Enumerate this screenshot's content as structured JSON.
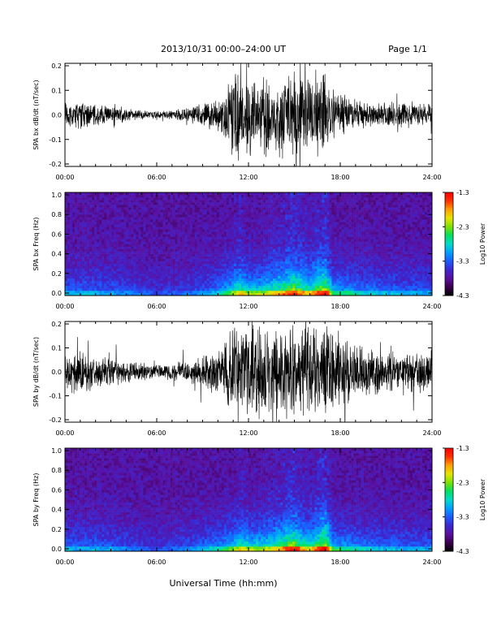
{
  "header": {
    "title": "2013/10/31   00:00–24:00 UT",
    "page": "Page 1/1"
  },
  "footer": {
    "xlabel": "Universal Time (hh:mm)"
  },
  "colorbar": {
    "label": "Log10 Power",
    "ticks": [
      "-1.3",
      "-2.3",
      "-3.3",
      "-4.3"
    ],
    "values": [
      -1.3,
      -2.3,
      -3.3,
      -4.3
    ]
  },
  "colors": {
    "trace": "#000000",
    "colormap": [
      "#000000",
      "#3c0050",
      "#5a10a0",
      "#3c28d0",
      "#1e5aff",
      "#00a0ff",
      "#00dcc8",
      "#00e060",
      "#80e000",
      "#e6e600",
      "#ffa000",
      "#ff3000",
      "#ff0000"
    ]
  },
  "chart_data": [
    {
      "type": "line",
      "ylabel": "SPA bx dB/dt (nT/sec)",
      "xlim": [
        "00:00",
        "24:00"
      ],
      "ylim": [
        -0.2,
        0.2
      ],
      "xticks": [
        "00:00",
        "06:00",
        "12:00",
        "18:00",
        "24:00"
      ],
      "yticks": [
        "0.2",
        "0.1",
        "0.0",
        "-0.1",
        "-0.2"
      ],
      "envelope_x_hours": [
        0,
        1,
        2,
        3,
        4,
        5,
        6,
        7,
        8,
        9,
        10,
        10.5,
        11,
        11.5,
        12,
        12.5,
        13,
        13.5,
        14,
        14.5,
        15,
        15.5,
        16,
        16.5,
        17,
        17.5,
        18,
        18.5,
        19,
        20,
        21,
        22,
        23,
        24
      ],
      "envelope_amplitude": [
        0.05,
        0.06,
        0.05,
        0.04,
        0.03,
        0.02,
        0.015,
        0.02,
        0.03,
        0.05,
        0.07,
        0.12,
        0.2,
        0.2,
        0.18,
        0.15,
        0.2,
        0.12,
        0.2,
        0.15,
        0.2,
        0.2,
        0.15,
        0.2,
        0.2,
        0.12,
        0.1,
        0.08,
        0.07,
        0.06,
        0.05,
        0.06,
        0.05,
        0.05
      ]
    },
    {
      "type": "heatmap",
      "ylabel": "SPA bx Freq (Hz)",
      "xlim": [
        "00:00",
        "24:00"
      ],
      "ylim": [
        0.0,
        1.0
      ],
      "xticks": [
        "00:00",
        "06:00",
        "12:00",
        "18:00",
        "24:00"
      ],
      "yticks": [
        "1.0",
        "0.8",
        "0.6",
        "0.4",
        "0.2",
        "0.0"
      ],
      "zlim": [
        -4.3,
        -1.3
      ],
      "activity_x_hours": [
        0,
        2,
        4,
        6,
        8,
        10,
        11,
        11.5,
        12,
        13,
        14,
        15,
        15.5,
        16,
        17,
        17.5,
        18,
        19,
        20,
        22,
        24
      ],
      "activity_level": [
        0.3,
        0.3,
        0.25,
        0.15,
        0.2,
        0.35,
        0.6,
        0.7,
        0.55,
        0.6,
        0.7,
        0.85,
        0.75,
        0.65,
        0.95,
        0.5,
        0.45,
        0.4,
        0.35,
        0.3,
        0.3
      ]
    },
    {
      "type": "line",
      "ylabel": "SPA by dB/dt (nT/sec)",
      "xlim": [
        "00:00",
        "24:00"
      ],
      "ylim": [
        -0.2,
        0.2
      ],
      "xticks": [
        "00:00",
        "06:00",
        "12:00",
        "18:00",
        "24:00"
      ],
      "yticks": [
        "0.2",
        "0.1",
        "0.0",
        "-0.1",
        "-0.2"
      ],
      "envelope_x_hours": [
        0,
        1,
        2,
        3,
        4,
        5,
        6,
        7,
        8,
        9,
        10,
        10.5,
        11,
        11.5,
        12,
        12.5,
        13,
        13.5,
        14,
        14.5,
        15,
        15.5,
        16,
        16.5,
        17,
        17.5,
        18,
        18.5,
        19,
        20,
        21,
        22,
        23,
        24
      ],
      "envelope_amplitude": [
        0.08,
        0.1,
        0.07,
        0.06,
        0.05,
        0.04,
        0.03,
        0.04,
        0.05,
        0.07,
        0.1,
        0.15,
        0.2,
        0.2,
        0.2,
        0.2,
        0.2,
        0.2,
        0.2,
        0.2,
        0.2,
        0.2,
        0.2,
        0.2,
        0.2,
        0.2,
        0.18,
        0.15,
        0.12,
        0.1,
        0.08,
        0.08,
        0.09,
        0.1
      ]
    },
    {
      "type": "heatmap",
      "ylabel": "SPA by Freq (Hz)",
      "xlim": [
        "00:00",
        "24:00"
      ],
      "ylim": [
        0.0,
        1.0
      ],
      "xticks": [
        "00:00",
        "06:00",
        "12:00",
        "18:00",
        "24:00"
      ],
      "yticks": [
        "1.0",
        "0.8",
        "0.6",
        "0.4",
        "0.2",
        "0.0"
      ],
      "zlim": [
        -4.3,
        -1.3
      ],
      "activity_x_hours": [
        0,
        2,
        4,
        6,
        8,
        10,
        11,
        11.5,
        12,
        13,
        14,
        15,
        15.5,
        16,
        17,
        17.5,
        18,
        19,
        20,
        22,
        24
      ],
      "activity_level": [
        0.3,
        0.3,
        0.25,
        0.15,
        0.25,
        0.4,
        0.55,
        0.65,
        0.6,
        0.6,
        0.7,
        0.9,
        0.7,
        0.65,
        0.95,
        0.5,
        0.45,
        0.4,
        0.35,
        0.3,
        0.3
      ]
    }
  ]
}
